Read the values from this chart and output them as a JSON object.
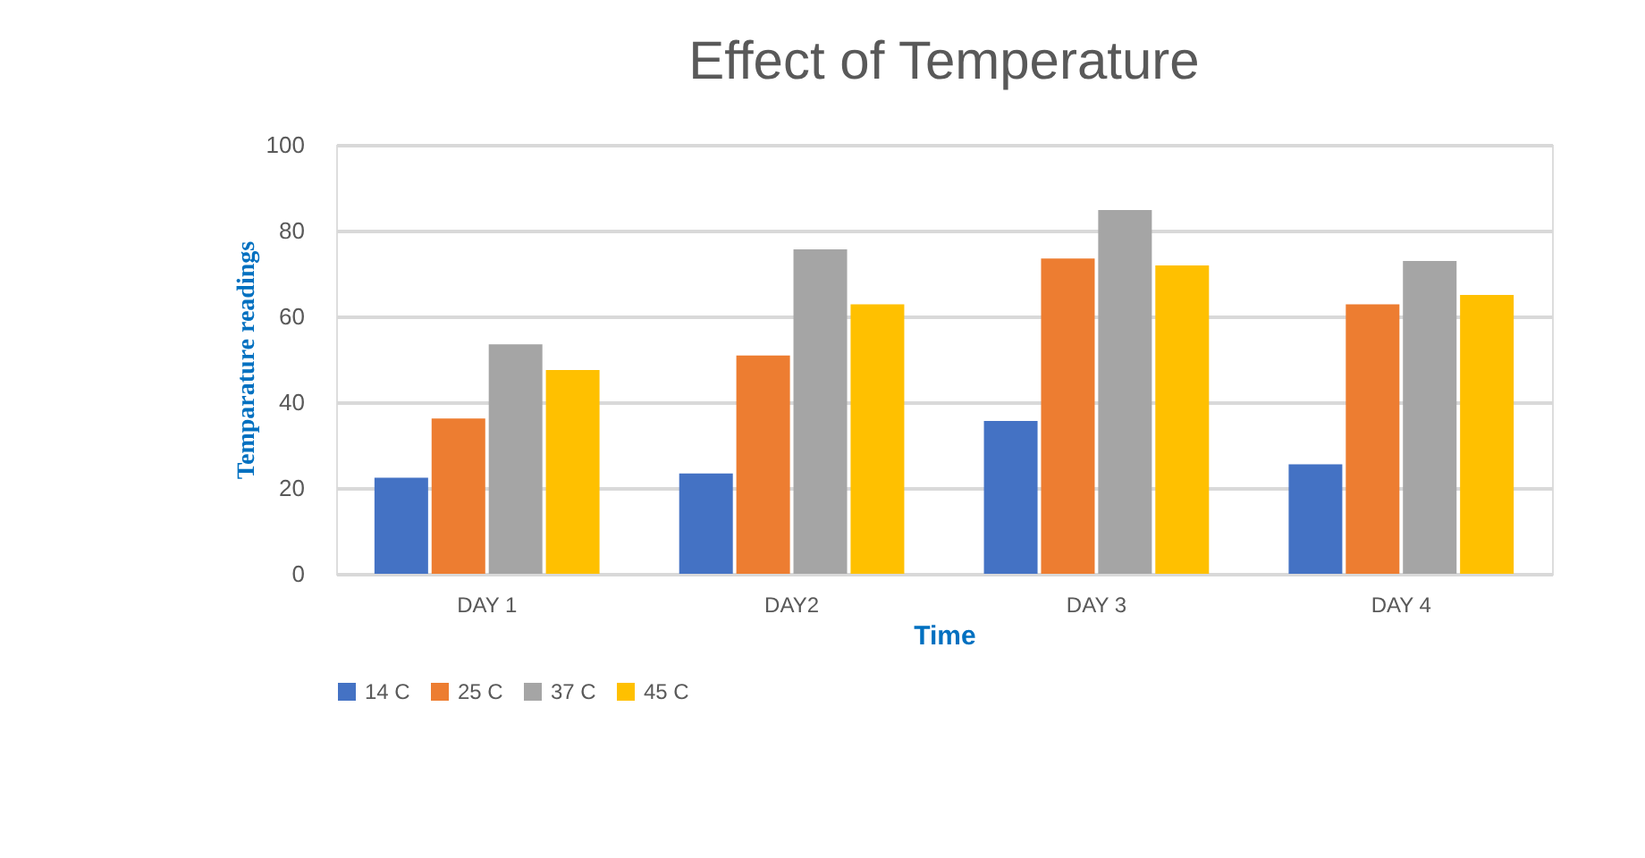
{
  "chart_data": {
    "type": "bar",
    "title": "Effect of Temperature",
    "xlabel": "Time",
    "ylabel": "Temparature readings",
    "categories": [
      "DAY 1",
      "DAY2",
      "DAY 3",
      "DAY 4"
    ],
    "series": [
      {
        "name": "14 C",
        "color": "#4472c4",
        "values": [
          22.4,
          23.4,
          35.6,
          25.5
        ]
      },
      {
        "name": "25 C",
        "color": "#ed7d31",
        "values": [
          36.2,
          50.9,
          73.5,
          62.8
        ]
      },
      {
        "name": "37 C",
        "color": "#a5a5a5",
        "values": [
          53.5,
          75.6,
          84.8,
          72.9
        ]
      },
      {
        "name": "45 C",
        "color": "#ffc000",
        "values": [
          47.5,
          62.8,
          71.9,
          65.0
        ]
      }
    ],
    "ylim": [
      0,
      100
    ],
    "yticks": [
      0,
      20,
      40,
      60,
      80,
      100
    ],
    "grid": "y",
    "legend": "bottom"
  }
}
